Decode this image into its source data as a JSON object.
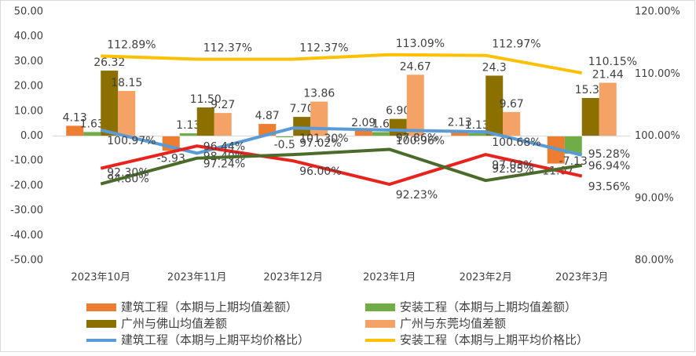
{
  "chart_data": {
    "type": "bar-line",
    "categories": [
      "2023年10月",
      "2023年11月",
      "2023年12月",
      "2023年1月",
      "2023年2月",
      "2023年3月"
    ],
    "ylim": [
      -50,
      50
    ],
    "yticks": [
      {
        "value": -50,
        "label": "-50.00"
      },
      {
        "value": -40,
        "label": "-40.00"
      },
      {
        "value": -30,
        "label": "-30.00"
      },
      {
        "value": -20,
        "label": "-20.00"
      },
      {
        "value": -10,
        "label": "-10.00"
      },
      {
        "value": 0,
        "label": "0.00"
      },
      {
        "value": 10,
        "label": "10.00"
      },
      {
        "value": 20,
        "label": "20.00"
      },
      {
        "value": 30,
        "label": "30.00"
      },
      {
        "value": 40,
        "label": "40.00"
      },
      {
        "value": 50,
        "label": "50.00"
      }
    ],
    "y2lim": [
      80,
      120
    ],
    "y2ticks": [
      {
        "value": 80,
        "label": "80.00%"
      },
      {
        "value": 90,
        "label": "90.00%"
      },
      {
        "value": 100,
        "label": "100.00%"
      },
      {
        "value": 110,
        "label": "110.00%"
      },
      {
        "value": 120,
        "label": "120.00%"
      }
    ],
    "series": [
      {
        "name": "建筑工程（本期与上期均值差额）",
        "type": "bar",
        "color": "#ED7D31",
        "values": [
          4.13,
          -5.93,
          4.87,
          2.09,
          2.13,
          -11.07
        ],
        "value_labels": [
          "4.13",
          "-5.93",
          "4.87",
          "2.09",
          "2.13",
          "-11.07"
        ]
      },
      {
        "name": "安装工程（本期与上期均值差额）",
        "type": "bar",
        "color": "#70AD47",
        "values": [
          1.63,
          1.13,
          -0.5,
          1.6,
          1.13,
          -7.13
        ],
        "value_labels": [
          "1.63",
          "1.13",
          "-0.5",
          "1.6",
          "1.13",
          "-7.13"
        ]
      },
      {
        "name": "广州与佛山均值差额",
        "type": "bar",
        "color": "#8B7000",
        "values": [
          26.32,
          11.5,
          7.7,
          6.9,
          24.3,
          15.3
        ],
        "value_labels": [
          "26.32",
          "11.50",
          "7.70",
          "6.90",
          "24.3",
          "15.30"
        ]
      },
      {
        "name": "广州与东莞均值差额",
        "type": "bar",
        "color": "#F4A266",
        "values": [
          18.15,
          9.27,
          13.86,
          24.67,
          9.67,
          21.44
        ],
        "value_labels": [
          "18.15",
          "9.27",
          "13.86",
          "24.67",
          "9.67",
          "21.44"
        ]
      },
      {
        "name": "建筑工程（本期与上期平均价格比）",
        "type": "line",
        "axis": "y2",
        "color": "#5B9BD5",
        "values": [
          100.97,
          97.24,
          101.3,
          100.96,
          100.68,
          96.94
        ],
        "value_labels": [
          "100.97%",
          "97.24%",
          "101.30%",
          "100.96%",
          "100.68%",
          "96.94%"
        ]
      },
      {
        "name": "安装工程（本期与上期平均价格比）",
        "type": "line",
        "axis": "y2",
        "color": "#FFC000",
        "values": [
          112.89,
          112.37,
          112.37,
          113.09,
          112.97,
          110.15
        ],
        "value_labels": [
          "112.89%",
          "112.37%",
          "112.37%",
          "113.09%",
          "112.97%",
          "110.15%"
        ]
      },
      {
        "type": "line",
        "axis": "y2",
        "color": "#E8231E",
        "values": [
          94.8,
          98.4,
          96.0,
          92.23,
          97.03,
          93.56
        ],
        "value_labels": [
          "94.80%",
          "98.40%",
          "96.00%",
          "92.23%",
          "97.03%",
          "93.56%"
        ]
      },
      {
        "type": "line",
        "axis": "y2",
        "color": "#4A6B2A",
        "values": [
          92.3,
          96.44,
          97.02,
          97.86,
          92.85,
          95.28
        ],
        "value_labels": [
          "92.30%",
          "96.44%",
          "97.02%",
          "97.86%",
          "92.85%",
          "95.28%"
        ]
      }
    ]
  }
}
